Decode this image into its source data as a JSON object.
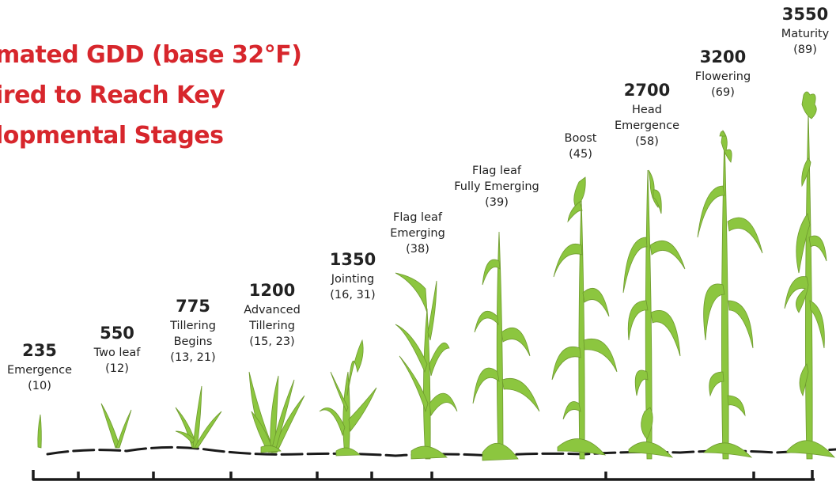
{
  "title": {
    "line1": "mated GDD (base 32°F)",
    "line2": "ired to Reach Key",
    "line3": "lopmental Stages"
  },
  "colors": {
    "title": "#d7262c",
    "plant": "#8cc63f",
    "plant_shadow": "#6e9a2e",
    "soil": "#1a1a1a",
    "text": "#222222"
  },
  "stages": [
    {
      "gdd": "235",
      "label_lines": [
        "Emergence"
      ],
      "code": "(10)"
    },
    {
      "gdd": "550",
      "label_lines": [
        "Two leaf"
      ],
      "code": "(12)"
    },
    {
      "gdd": "775",
      "label_lines": [
        "Tillering",
        "Begins"
      ],
      "code": "(13, 21)"
    },
    {
      "gdd": "1200",
      "label_lines": [
        "Advanced",
        "Tillering"
      ],
      "code": "(15, 23)"
    },
    {
      "gdd": "1350",
      "label_lines": [
        "Jointing"
      ],
      "code": "(16, 31)"
    },
    {
      "gdd": "",
      "label_lines": [
        "Flag leaf",
        "Emerging"
      ],
      "code": "(38)"
    },
    {
      "gdd": "",
      "label_lines": [
        "Flag leaf",
        "Fully Emerging"
      ],
      "code": "(39)"
    },
    {
      "gdd": "",
      "label_lines": [
        "Boost"
      ],
      "code": "(45)"
    },
    {
      "gdd": "2700",
      "label_lines": [
        "Head",
        "Emergence"
      ],
      "code": "(58)"
    },
    {
      "gdd": "3200",
      "label_lines": [
        "Flowering"
      ],
      "code": "(69)"
    },
    {
      "gdd": "3550",
      "label_lines": [
        "Maturity"
      ],
      "code": "(89)"
    }
  ]
}
